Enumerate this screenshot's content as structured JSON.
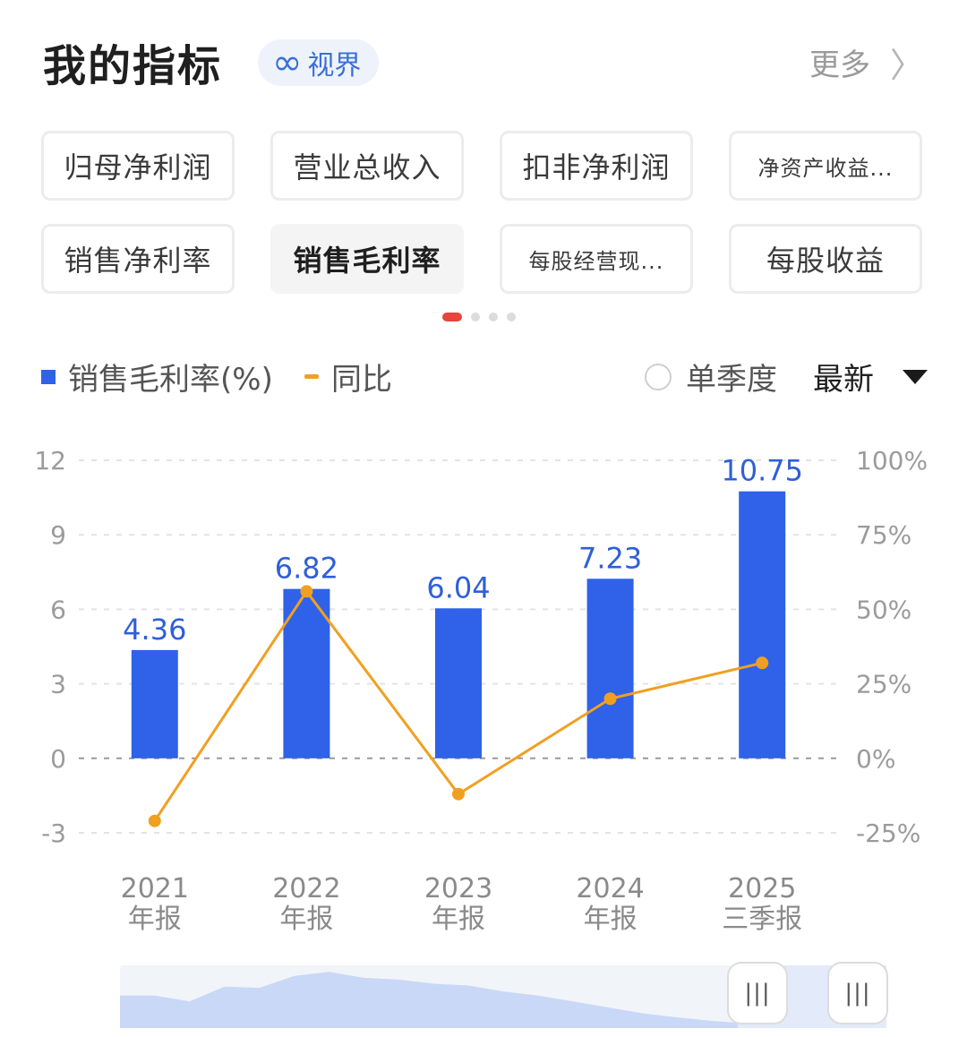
{
  "header": {
    "title": "我的指标",
    "badge_icon": "infinity-icon",
    "badge_label": "视界",
    "more_label": "更多",
    "more_icon": "chevron-right-icon"
  },
  "indicators": [
    {
      "label": "归母净利润",
      "active": false
    },
    {
      "label": "营业总收入",
      "active": false
    },
    {
      "label": "扣非净利润",
      "active": false
    },
    {
      "label": "净资产收益...",
      "active": false
    },
    {
      "label": "销售净利率",
      "active": false
    },
    {
      "label": "销售毛利率",
      "active": true
    },
    {
      "label": "每股经营现...",
      "active": false
    },
    {
      "label": "每股收益",
      "active": false
    }
  ],
  "pager": {
    "total": 4,
    "active": 0
  },
  "controls": {
    "legend_bar": "销售毛利率(%)",
    "legend_line": "同比",
    "single_quarter_label": "单季度",
    "single_quarter_checked": false,
    "period_select": "最新"
  },
  "colors": {
    "bar": "#2f62e9",
    "line": "#f0a020",
    "accent": "#e8453c"
  },
  "chart_data": {
    "type": "bar",
    "categories": [
      [
        "2021",
        "年报"
      ],
      [
        "2022",
        "年报"
      ],
      [
        "2023",
        "年报"
      ],
      [
        "2024",
        "年报"
      ],
      [
        "2025",
        "三季报"
      ]
    ],
    "series": [
      {
        "name": "销售毛利率(%)",
        "type": "bar",
        "axis": "left",
        "values": [
          4.36,
          6.82,
          6.04,
          7.23,
          10.75
        ]
      },
      {
        "name": "同比",
        "type": "line",
        "axis": "right",
        "values": [
          -21,
          56,
          -12,
          20,
          32
        ]
      }
    ],
    "data_labels": [
      "4.36",
      "6.82",
      "6.04",
      "7.23",
      "10.75"
    ],
    "y_left": {
      "ticks": [
        12,
        9,
        6,
        3,
        0,
        -3
      ],
      "ylim": [
        -3,
        12
      ]
    },
    "y_right": {
      "ticks": [
        "100%",
        "75%",
        "50%",
        "25%",
        "0%",
        "-25%"
      ],
      "ylim": [
        -25,
        100
      ]
    },
    "grid": true
  },
  "slider": {
    "handle_left_glyph": "|||",
    "handle_right_glyph": "|||",
    "window_start": 0.8,
    "window_end": 1.0,
    "overview_values": [
      0.55,
      0.55,
      0.45,
      0.7,
      0.68,
      0.88,
      0.95,
      0.85,
      0.82,
      0.75,
      0.72,
      0.62,
      0.55,
      0.45,
      0.35,
      0.25,
      0.18,
      0.12,
      0.08,
      0.06,
      0.06,
      0.08,
      0.1
    ]
  }
}
